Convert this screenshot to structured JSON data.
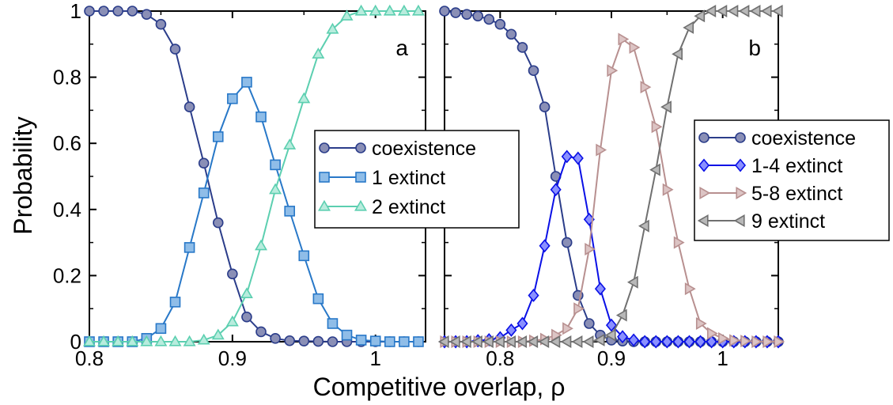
{
  "chart_data": [
    {
      "type": "line",
      "panel_label": "a",
      "xlim": [
        0.8,
        1.035
      ],
      "ylim": [
        0,
        1
      ],
      "xticks": [
        0.8,
        0.9,
        1
      ],
      "xtick_labels": [
        "0.8",
        "0.9",
        "1"
      ],
      "yticks": [
        0,
        0.2,
        0.4,
        0.6,
        0.8,
        1
      ],
      "ytick_labels": [
        "0",
        "0.2",
        "0.4",
        "0.6",
        "0.8",
        "1"
      ],
      "ylabel": "Probability",
      "legend_position": "center-right",
      "x": [
        0.8,
        0.81,
        0.82,
        0.83,
        0.84,
        0.85,
        0.86,
        0.87,
        0.88,
        0.89,
        0.9,
        0.91,
        0.92,
        0.93,
        0.94,
        0.95,
        0.96,
        0.97,
        0.98,
        0.99,
        1.0,
        1.01,
        1.02,
        1.03
      ],
      "series": [
        {
          "name": "coexistence",
          "color": "#2b3d8a",
          "fill": "#8a8fb6",
          "marker": "circle",
          "values": [
            1.0,
            1.0,
            1.0,
            1.0,
            0.99,
            0.96,
            0.885,
            0.71,
            0.54,
            0.36,
            0.205,
            0.075,
            0.03,
            0.01,
            0.003,
            0.002,
            0.001,
            0,
            0,
            0,
            0,
            0,
            0,
            0
          ]
        },
        {
          "name": "1 extinct",
          "color": "#2878c8",
          "fill": "#8fbde8",
          "marker": "square",
          "values": [
            0,
            0,
            0,
            0,
            0.01,
            0.04,
            0.12,
            0.285,
            0.45,
            0.62,
            0.735,
            0.785,
            0.68,
            0.535,
            0.395,
            0.26,
            0.13,
            0.055,
            0.02,
            0.005,
            0.002,
            0,
            0,
            0
          ]
        },
        {
          "name": "2 extinct",
          "color": "#5ccfb0",
          "fill": "#b8ecdd",
          "marker": "triangle-up",
          "values": [
            0,
            0,
            0,
            0,
            0,
            0,
            0,
            0,
            0.005,
            0.02,
            0.06,
            0.145,
            0.29,
            0.46,
            0.595,
            0.735,
            0.87,
            0.945,
            0.985,
            1.0,
            1.0,
            1.0,
            1.0,
            1.0
          ]
        }
      ]
    },
    {
      "type": "line",
      "panel_label": "b",
      "xlim": [
        0.75,
        1.05
      ],
      "ylim": [
        0,
        1
      ],
      "xticks": [
        0.8,
        0.9,
        1
      ],
      "xtick_labels": [
        "0.8",
        "0.9",
        "1"
      ],
      "legend_position": "center-right",
      "x": [
        0.75,
        0.76,
        0.77,
        0.78,
        0.79,
        0.8,
        0.81,
        0.82,
        0.83,
        0.84,
        0.85,
        0.86,
        0.87,
        0.88,
        0.89,
        0.9,
        0.91,
        0.92,
        0.93,
        0.94,
        0.95,
        0.96,
        0.97,
        0.98,
        0.99,
        1.0,
        1.01,
        1.02,
        1.03,
        1.04,
        1.05
      ],
      "series": [
        {
          "name": "coexistence",
          "color": "#2b3d8a",
          "fill": "#8a8fb6",
          "marker": "circle",
          "values": [
            1.0,
            0.995,
            0.99,
            0.985,
            0.975,
            0.96,
            0.93,
            0.89,
            0.82,
            0.71,
            0.5,
            0.3,
            0.14,
            0.055,
            0.02,
            0.005,
            0.002,
            0,
            0,
            0,
            0,
            0,
            0,
            0,
            0,
            0,
            0,
            0,
            0,
            0,
            0
          ]
        },
        {
          "name": "1-4 extinct",
          "color": "#0a10e6",
          "fill": "#8a90ff",
          "marker": "diamond",
          "values": [
            0,
            0,
            0,
            0.003,
            0.006,
            0.012,
            0.035,
            0.055,
            0.14,
            0.29,
            0.46,
            0.56,
            0.555,
            0.37,
            0.16,
            0.05,
            0.015,
            0.005,
            0,
            0,
            0,
            0,
            0,
            0,
            0,
            0,
            0,
            0,
            0,
            0,
            0
          ]
        },
        {
          "name": "5-8 extinct",
          "color": "#b89090",
          "fill": "#dcc4c4",
          "marker": "triangle-right",
          "values": [
            0,
            0,
            0,
            0,
            0,
            0,
            0,
            0,
            0.003,
            0.008,
            0.02,
            0.04,
            0.1,
            0.28,
            0.58,
            0.82,
            0.915,
            0.89,
            0.77,
            0.65,
            0.46,
            0.3,
            0.16,
            0.055,
            0.025,
            0.01,
            0.004,
            0.002,
            0,
            0,
            0
          ]
        },
        {
          "name": "9 extinct",
          "color": "#707070",
          "fill": "#b8b8b8",
          "marker": "triangle-left",
          "values": [
            0,
            0,
            0,
            0,
            0,
            0,
            0,
            0,
            0,
            0,
            0,
            0,
            0,
            0,
            0.005,
            0.02,
            0.08,
            0.18,
            0.35,
            0.52,
            0.71,
            0.87,
            0.95,
            0.985,
            1.0,
            1.0,
            1.0,
            1.0,
            1.0,
            1.0,
            1.0
          ]
        }
      ]
    }
  ],
  "shared": {
    "xlabel": "Competitive overlap, ρ"
  }
}
